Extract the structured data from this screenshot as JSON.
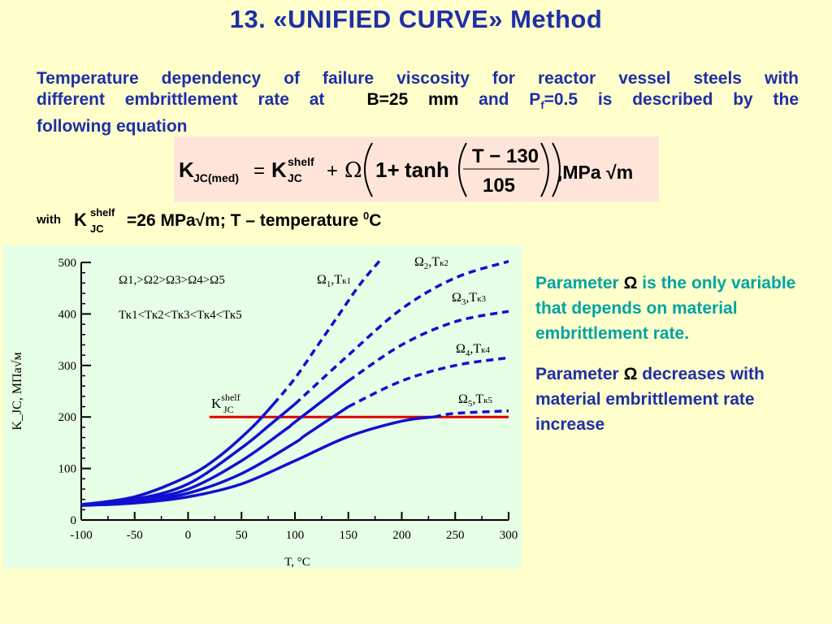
{
  "slide": {
    "title": "13.   «UNIFIED CURVE»  Method",
    "intro": {
      "line1": "Temperature dependency of failure viscosity for reactor vessel steels with",
      "line2a": "different embrittlement rate at",
      "line2b": "B=25 mm",
      "line2c": "and P",
      "line2c_sub": "f",
      "line2d": "=0.5 is described by the",
      "line3": "following equation"
    },
    "equation": {
      "lhs": "K",
      "lhs_sub": "JC(med)",
      "eq": "=",
      "k2": "K",
      "k2_sup": "shelf",
      "k2_sub": "JC",
      "plus": "+",
      "omega": "Ω",
      "one_plus": "1+",
      "tanh": "tanh",
      "num": "T − 130",
      "den": "105",
      "unit": ",MPa √m"
    },
    "with_line": {
      "with": "with",
      "k": "K",
      "k_sup": "shelf",
      "k_sub": "JC",
      "rest": "=26 MPa√m; T – temperature ",
      "rest_sup": "0",
      "rest_end": "C"
    },
    "side": {
      "p1_a": "Parameter ",
      "p1_omega": "Ω",
      "p1_b": " is the only variable that depends on material embrittlement rate.",
      "p2_a": "Parameter  ",
      "p2_omega": "Ω",
      "p2_b": " decreases with material embrittlement rate increase"
    }
  },
  "chart_data": {
    "type": "line",
    "xlabel": "T, °C",
    "ylabel": "K_JC, МПа√м",
    "xlim": [
      -100,
      300
    ],
    "ylim": [
      0,
      500
    ],
    "x_ticks": [
      -100,
      -50,
      0,
      50,
      100,
      150,
      200,
      250,
      300
    ],
    "y_ticks": [
      0,
      100,
      200,
      300,
      400,
      500
    ],
    "grid": false,
    "legend_lines": [
      "Ω1,>Ω2>Ω3>Ω4>Ω5",
      "Тк1<Тк2<Тк3<Тк4<Тк5"
    ],
    "shelf_label": "K_JC^shelf",
    "shelf_line": {
      "y": 200,
      "x_start": 20,
      "x_end": 300,
      "color": "#E00000"
    },
    "curve_color": "#1010D0",
    "series": [
      {
        "name": "Ω1,Тк1",
        "x": [
          -100,
          -50,
          0,
          30,
          60,
          80,
          100,
          120,
          140,
          160,
          180
        ],
        "y": [
          30,
          45,
          85,
          125,
          180,
          225,
          275,
          335,
          395,
          455,
          505
        ]
      },
      {
        "name": "Ω2,Тк2",
        "x": [
          -100,
          -50,
          0,
          50,
          75,
          100,
          150,
          200,
          250,
          300
        ],
        "y": [
          30,
          40,
          70,
          140,
          182,
          225,
          320,
          410,
          470,
          502
        ]
      },
      {
        "name": "Ω3,Тк3",
        "x": [
          -100,
          -50,
          0,
          50,
          92,
          100,
          150,
          200,
          250,
          300
        ],
        "y": [
          30,
          38,
          60,
          115,
          177,
          190,
          270,
          340,
          385,
          405
        ]
      },
      {
        "name": "Ω4,Тк4",
        "x": [
          -100,
          -50,
          0,
          50,
          100,
          110,
          150,
          200,
          250,
          300
        ],
        "y": [
          30,
          36,
          52,
          90,
          150,
          165,
          220,
          270,
          300,
          315
        ]
      },
      {
        "name": "Ω5,Тк5",
        "x": [
          -100,
          -50,
          0,
          50,
          100,
          150,
          200,
          230,
          250,
          300
        ],
        "y": [
          28,
          33,
          45,
          70,
          115,
          162,
          192,
          200,
          207,
          212
        ]
      }
    ],
    "threshold_y": 200
  }
}
